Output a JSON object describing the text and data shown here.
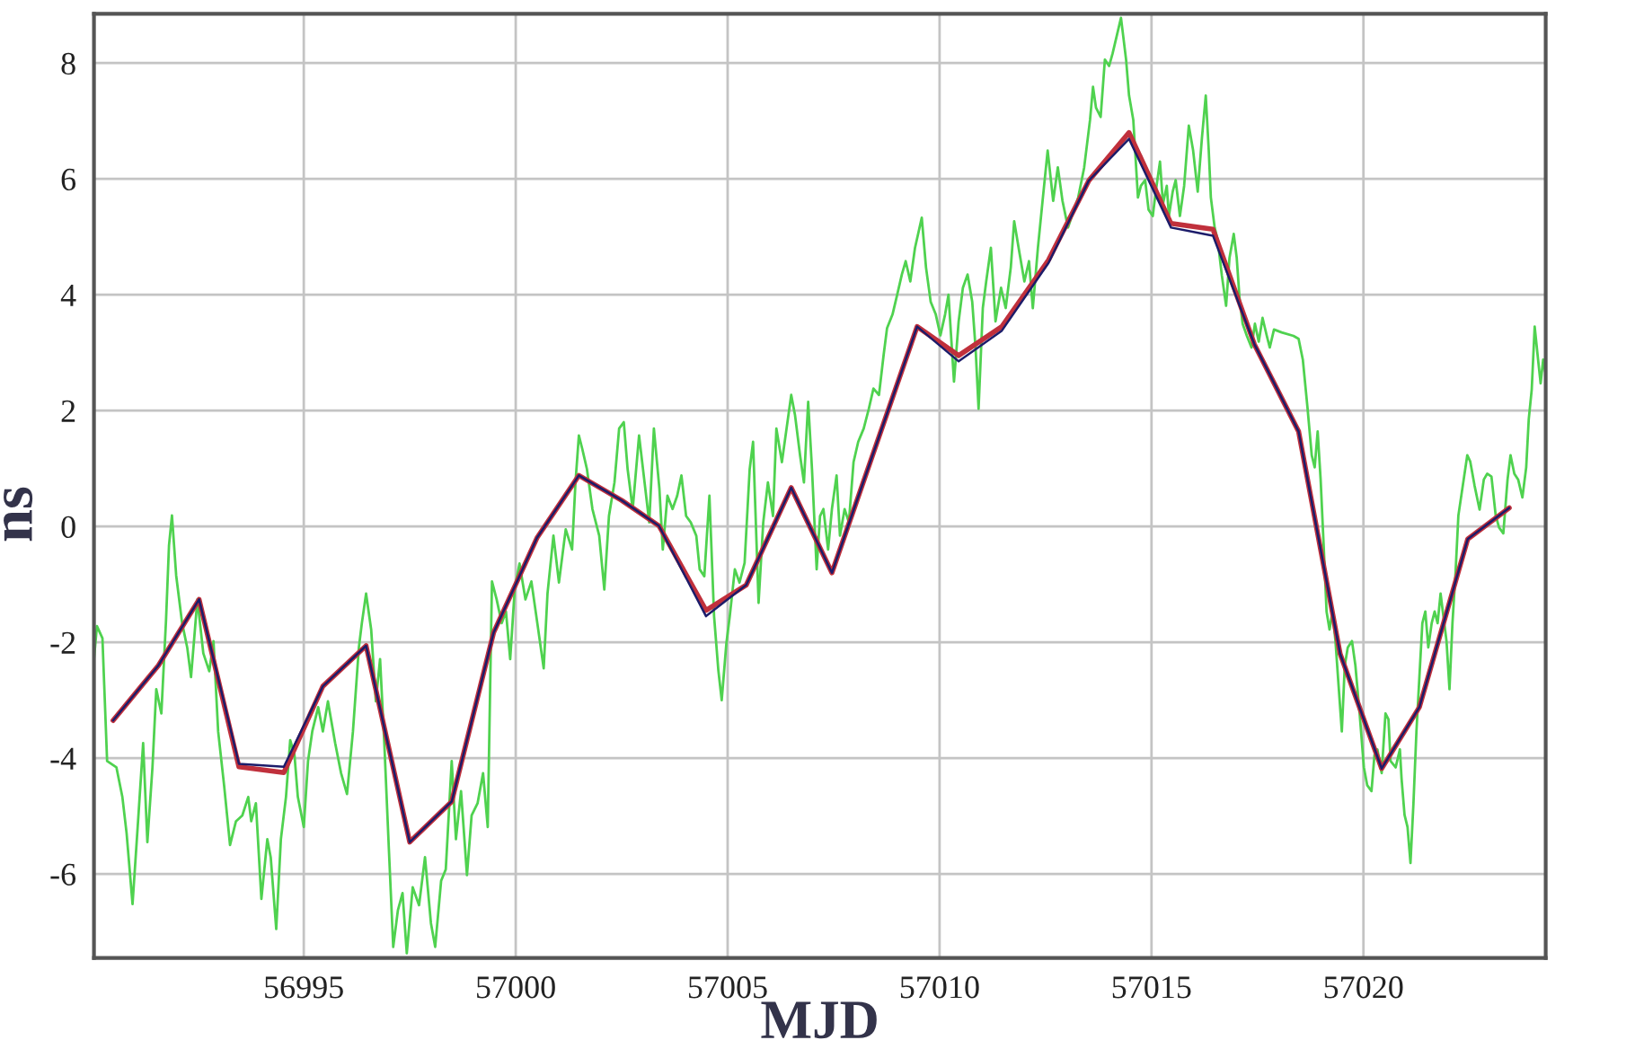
{
  "chart_data": {
    "type": "line",
    "xlabel": "MJD",
    "ylabel": "ns",
    "xlim": [
      56990.05,
      57024.3
    ],
    "xticks": [
      56995,
      57000,
      57005,
      57010,
      57015,
      57020
    ],
    "ylim": [
      -7.45,
      8.85
    ],
    "yticks": [
      -6,
      -4,
      -2,
      0,
      2,
      4,
      6,
      8
    ],
    "grid": true,
    "series": [
      {
        "color": "#4fd24f",
        "x": [
          56990.05,
          56990.12,
          56990.25,
          56990.36,
          56990.58,
          56990.72,
          56990.82,
          56990.96,
          56991.1,
          56991.21,
          56991.31,
          56991.43,
          56991.52,
          56991.64,
          56991.75,
          56991.82,
          56991.89,
          56991.99,
          56992.13,
          56992.25,
          56992.34,
          56992.49,
          56992.63,
          56992.77,
          56992.87,
          56992.98,
          56993.12,
          56993.26,
          56993.4,
          56993.55,
          56993.69,
          56993.76,
          56993.87,
          56994.0,
          56994.14,
          56994.22,
          56994.35,
          56994.46,
          56994.58,
          56994.68,
          56994.78,
          56994.86,
          56995.0,
          56995.1,
          56995.2,
          56995.34,
          56995.45,
          56995.57,
          56995.74,
          56995.88,
          56996.02,
          56996.16,
          56996.3,
          56996.37,
          56996.47,
          56996.59,
          56996.7,
          56996.8,
          56996.9,
          56997.01,
          56997.11,
          56997.22,
          56997.33,
          56997.43,
          56997.57,
          56997.72,
          56997.86,
          56998.0,
          56998.1,
          56998.24,
          56998.35,
          56998.49,
          56998.59,
          56998.71,
          56998.85,
          56998.96,
          56999.1,
          56999.23,
          56999.34,
          56999.44,
          56999.55,
          56999.67,
          56999.77,
          56999.87,
          56999.98,
          57000.09,
          57000.23,
          57000.37,
          57000.51,
          57000.66,
          57000.75,
          57000.89,
          57001.02,
          57001.18,
          57001.33,
          57001.41,
          57001.49,
          57001.57,
          57001.68,
          57001.81,
          57001.97,
          57002.09,
          57002.2,
          57002.33,
          57002.44,
          57002.55,
          57002.64,
          57002.76,
          57002.91,
          57003.04,
          57003.15,
          57003.26,
          57003.39,
          57003.47,
          57003.58,
          57003.7,
          57003.81,
          57003.91,
          57004.02,
          57004.13,
          57004.26,
          57004.34,
          57004.45,
          57004.57,
          57004.68,
          57004.78,
          57004.86,
          57004.97,
          57005.05,
          57005.17,
          57005.28,
          57005.4,
          57005.52,
          57005.6,
          57005.73,
          57005.84,
          57005.95,
          57006.07,
          57006.15,
          57006.28,
          57006.39,
          57006.5,
          57006.59,
          57006.71,
          57006.8,
          57006.9,
          57006.99,
          57007.1,
          57007.18,
          57007.26,
          57007.37,
          57007.46,
          57007.57,
          57007.65,
          57007.76,
          57007.86,
          57007.97,
          57008.08,
          57008.21,
          57008.33,
          57008.44,
          57008.57,
          57008.68,
          57008.76,
          57008.89,
          57009.0,
          57009.11,
          57009.2,
          57009.31,
          57009.42,
          57009.58,
          57009.68,
          57009.79,
          57009.91,
          57010.02,
          57010.13,
          57010.21,
          57010.34,
          57010.45,
          57010.55,
          57010.66,
          57010.77,
          57010.85,
          57010.92,
          57011.02,
          57011.1,
          57011.21,
          57011.32,
          57011.45,
          57011.56,
          57011.68,
          57011.76,
          57011.89,
          57012.0,
          57012.11,
          57012.2,
          57012.32,
          57012.43,
          57012.55,
          57012.68,
          57012.79,
          57012.9,
          57013.03,
          57013.27,
          57013.41,
          57013.55,
          57013.62,
          57013.69,
          57013.8,
          57013.9,
          57014.0,
          57014.08,
          57014.18,
          57014.28,
          57014.4,
          57014.47,
          57014.57,
          57014.68,
          57014.75,
          57014.85,
          57014.93,
          57015.03,
          57015.1,
          57015.2,
          57015.27,
          57015.36,
          57015.41,
          57015.5,
          57015.57,
          57015.67,
          57015.77,
          57015.88,
          57015.98,
          57016.09,
          57016.19,
          57016.28,
          57016.35,
          57016.4,
          57016.49,
          57016.56,
          57016.66,
          57016.76,
          57016.84,
          57016.94,
          57017.01,
          57017.08,
          57017.15,
          57017.25,
          57017.36,
          57017.44,
          57017.53,
          57017.62,
          57017.72,
          57017.79,
          57017.89,
          57018.07,
          57018.35,
          57018.47,
          57018.57,
          57018.68,
          57018.78,
          57018.85,
          57018.92,
          57018.99,
          57019.06,
          57019.13,
          57019.2,
          57019.27,
          57019.34,
          57019.41,
          57019.49,
          57019.56,
          57019.63,
          57019.73,
          57019.81,
          57019.91,
          57020.01,
          57020.09,
          57020.19,
          57020.26,
          57020.33,
          57020.43,
          57020.52,
          57020.59,
          57020.64,
          57020.76,
          57020.86,
          57020.9,
          57020.97,
          57021.04,
          57021.11,
          57021.18,
          57021.25,
          57021.32,
          57021.39,
          57021.46,
          57021.53,
          57021.61,
          57021.68,
          57021.75,
          57021.82,
          57021.89,
          57021.96,
          57022.03,
          57022.1,
          57022.17,
          57022.24,
          57022.45,
          57022.52,
          57022.62,
          57022.74,
          57022.84,
          57022.92,
          57023.02,
          57023.12,
          57023.2,
          57023.3,
          57023.4,
          57023.47,
          57023.56,
          57023.65,
          57023.75,
          57023.84,
          57023.9,
          57023.97,
          57024.04,
          57024.12,
          57024.18,
          57024.24,
          57024.29
        ],
        "values": [
          -2.29,
          -1.72,
          -1.93,
          -4.05,
          -4.16,
          -4.67,
          -5.3,
          -6.52,
          -4.98,
          -3.74,
          -5.45,
          -4.16,
          -2.81,
          -3.23,
          -1.62,
          -0.33,
          0.19,
          -0.85,
          -1.67,
          -2.09,
          -2.6,
          -1.26,
          -2.19,
          -2.5,
          -1.98,
          -3.54,
          -4.47,
          -5.5,
          -5.09,
          -4.99,
          -4.67,
          -5.09,
          -4.78,
          -6.43,
          -5.4,
          -5.71,
          -6.95,
          -5.4,
          -4.67,
          -3.69,
          -3.94,
          -4.67,
          -5.19,
          -4.05,
          -3.54,
          -3.12,
          -3.54,
          -3.02,
          -3.74,
          -4.26,
          -4.62,
          -3.54,
          -2.09,
          -1.67,
          -1.16,
          -1.78,
          -3.02,
          -2.29,
          -3.74,
          -5.61,
          -7.26,
          -6.63,
          -6.33,
          -7.37,
          -6.23,
          -6.54,
          -5.71,
          -6.85,
          -7.26,
          -6.12,
          -5.92,
          -4.05,
          -5.4,
          -4.57,
          -6.02,
          -4.99,
          -4.78,
          -4.26,
          -5.19,
          -0.95,
          -1.26,
          -1.67,
          -1.47,
          -2.29,
          -1.05,
          -0.64,
          -1.26,
          -0.95,
          -1.67,
          -2.45,
          -1.16,
          -0.16,
          -0.97,
          -0.05,
          -0.4,
          0.76,
          1.57,
          1.34,
          0.99,
          0.3,
          -0.16,
          -1.09,
          0.18,
          0.76,
          1.69,
          1.8,
          0.99,
          0.3,
          1.57,
          0.76,
          0.07,
          1.69,
          0.65,
          -0.4,
          0.53,
          0.3,
          0.53,
          0.88,
          0.18,
          0.07,
          -0.16,
          -0.74,
          -0.86,
          0.53,
          -1.55,
          -2.48,
          -3.0,
          -2.02,
          -1.55,
          -0.74,
          -0.97,
          -0.63,
          0.99,
          1.46,
          -1.32,
          0.07,
          0.76,
          0.18,
          1.69,
          1.11,
          1.69,
          2.27,
          1.92,
          1.22,
          0.76,
          2.15,
          0.99,
          -0.74,
          0.18,
          0.3,
          -0.4,
          0.3,
          0.88,
          -0.16,
          0.3,
          0.07,
          1.11,
          1.46,
          1.69,
          2.03,
          2.38,
          2.27,
          2.96,
          3.42,
          3.66,
          4.0,
          4.35,
          4.58,
          4.23,
          4.81,
          5.33,
          4.47,
          3.88,
          3.66,
          3.3,
          3.66,
          4.0,
          2.5,
          3.54,
          4.12,
          4.35,
          3.88,
          3.07,
          2.03,
          3.77,
          4.23,
          4.81,
          3.54,
          4.12,
          3.77,
          4.47,
          5.27,
          4.7,
          4.23,
          4.58,
          3.77,
          4.81,
          5.62,
          6.49,
          5.62,
          6.2,
          5.62,
          5.16,
          5.68,
          6.19,
          7.02,
          7.59,
          7.23,
          7.07,
          8.06,
          7.95,
          8.16,
          8.47,
          8.78,
          8.06,
          7.44,
          7.02,
          5.68,
          5.88,
          5.98,
          5.47,
          5.36,
          5.78,
          6.3,
          5.57,
          5.88,
          5.36,
          5.78,
          5.98,
          5.36,
          5.88,
          6.92,
          6.5,
          5.78,
          6.71,
          7.44,
          6.5,
          5.68,
          5.16,
          4.95,
          4.33,
          3.81,
          4.64,
          5.05,
          4.64,
          3.91,
          3.5,
          3.29,
          3.09,
          3.5,
          3.19,
          3.6,
          3.29,
          3.09,
          3.4,
          3.35,
          3.29,
          3.24,
          2.88,
          2.05,
          1.23,
          1.02,
          1.64,
          0.81,
          -0.3,
          -1.47,
          -1.78,
          -1.47,
          -1.98,
          -2.71,
          -3.54,
          -2.4,
          -2.09,
          -1.98,
          -2.4,
          -3.23,
          -4.16,
          -4.47,
          -4.57,
          -3.95,
          -3.85,
          -4.26,
          -3.23,
          -3.33,
          -4.05,
          -4.16,
          -3.85,
          -4.36,
          -4.98,
          -5.19,
          -5.81,
          -4.78,
          -3.54,
          -2.6,
          -1.67,
          -1.47,
          -2.09,
          -1.67,
          -1.47,
          -1.67,
          -1.16,
          -1.57,
          -1.98,
          -2.81,
          -1.67,
          -0.84,
          0.19,
          1.23,
          1.12,
          0.71,
          0.29,
          0.81,
          0.91,
          0.86,
          0.19,
          -0.02,
          -0.12,
          0.81,
          1.23,
          0.91,
          0.81,
          0.5,
          1.02,
          1.85,
          2.36,
          3.45,
          2.88,
          2.47,
          2.88,
          2.67
        ]
      },
      {
        "color": "#c0303c",
        "x": [
          56990.5,
          56991.57,
          56992.53,
          56993.47,
          56994.53,
          56995.45,
          56996.47,
          56997.5,
          56998.49,
          56999.48,
          57000.5,
          57001.49,
          57002.5,
          57003.38,
          57004.49,
          57005.44,
          57006.5,
          57007.46,
          57009.47,
          57010.45,
          57011.47,
          57012.57,
          57013.52,
          57014.47,
          57015.46,
          57016.45,
          57017.43,
          57018.47,
          57019.45,
          57020.43,
          57021.32,
          57022.46,
          57023.44
        ],
        "values": [
          -3.35,
          -2.4,
          -1.26,
          -4.15,
          -4.25,
          -2.76,
          -2.06,
          -5.45,
          -4.75,
          -1.83,
          -0.2,
          0.88,
          0.45,
          0.01,
          -1.45,
          -1.01,
          0.67,
          -0.8,
          3.45,
          2.95,
          3.45,
          4.6,
          5.97,
          6.8,
          5.23,
          5.13,
          3.14,
          1.64,
          -2.2,
          -4.18,
          -3.12,
          -0.22,
          0.32
        ]
      },
      {
        "color": "#1c1c6a",
        "x": [
          56990.5,
          56991.57,
          56992.53,
          56993.47,
          56994.53,
          56995.45,
          56996.47,
          56997.5,
          56998.49,
          56999.48,
          57000.5,
          57001.49,
          57002.5,
          57003.38,
          57004.49,
          57005.44,
          57006.5,
          57007.46,
          57009.47,
          57010.45,
          57011.47,
          57012.57,
          57013.52,
          57014.47,
          57015.46,
          57016.45,
          57017.43,
          57018.47,
          57019.45,
          57020.43,
          57021.32,
          57022.46,
          57023.44
        ],
        "values": [
          -3.35,
          -2.4,
          -1.26,
          -4.1,
          -4.15,
          -2.76,
          -2.06,
          -5.45,
          -4.75,
          -1.83,
          -0.2,
          0.88,
          0.45,
          0.01,
          -1.55,
          -1.01,
          0.67,
          -0.8,
          3.45,
          2.85,
          3.38,
          4.55,
          5.97,
          6.69,
          5.16,
          5.02,
          3.14,
          1.64,
          -2.2,
          -4.18,
          -3.12,
          -0.22,
          0.32
        ]
      }
    ]
  }
}
